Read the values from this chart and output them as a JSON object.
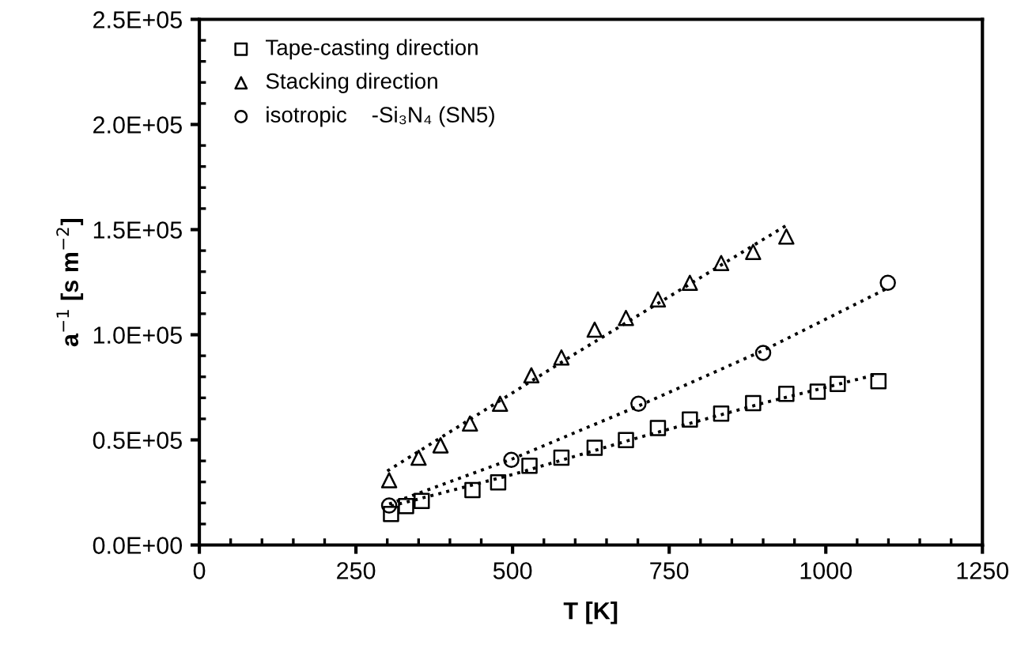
{
  "chart_data": {
    "type": "scatter",
    "xlabel": "T [K]",
    "ylabel": "a$^{−1}$ [s m$^{−2}$]",
    "xlim": [
      0,
      1250
    ],
    "xticks": [
      0,
      250,
      500,
      750,
      1000,
      1250
    ],
    "ylim": [
      0,
      250000
    ],
    "yticks": [
      {
        "value": 0,
        "label": "0.0E+00"
      },
      {
        "value": 50000,
        "label": "0.5E+05"
      },
      {
        "value": 100000,
        "label": "1.0E+05"
      },
      {
        "value": 150000,
        "label": "1.5E+05"
      },
      {
        "value": 200000,
        "label": "2.0E+05"
      },
      {
        "value": 250000,
        "label": "2.5E+05"
      }
    ],
    "grid": false,
    "legend": "top left",
    "series": [
      {
        "name": "Tape-casting direction",
        "marker": "square",
        "color": "#000000",
        "x": [
          306,
          330,
          355,
          436,
          477,
          527,
          578,
          631,
          681,
          732,
          783,
          833,
          884,
          937,
          987,
          1019,
          1084
        ],
        "values": [
          14800,
          18500,
          21000,
          26100,
          29800,
          37700,
          41500,
          46200,
          49900,
          55600,
          59700,
          62500,
          67500,
          71900,
          72900,
          76600,
          77900
        ]
      },
      {
        "name": "Stacking direction",
        "marker": "triangle",
        "color": "#000000",
        "x": [
          303,
          350,
          385,
          432,
          480,
          530,
          578,
          631,
          681,
          732,
          783,
          833,
          884,
          937
        ],
        "values": [
          30800,
          41500,
          47400,
          57800,
          67200,
          80700,
          89200,
          102400,
          108000,
          116800,
          124700,
          134100,
          139400,
          146700
        ]
      },
      {
        "name": "isotropic    -Si₃N₄ (SN5)",
        "marker": "circle",
        "color": "#000000",
        "x": [
          303,
          498,
          701,
          900,
          1099
        ],
        "values": [
          18800,
          40500,
          67200,
          91400,
          124700
        ]
      },
      {
        "type": "line",
        "line_style": "dotted",
        "marker": "none",
        "color": "#000000",
        "x": [
          306,
          500,
          700,
          900,
          1084
        ],
        "values": [
          18500,
          33500,
          51000,
          67500,
          81300
        ]
      },
      {
        "type": "line",
        "line_style": "dotted",
        "marker": "none",
        "color": "#000000",
        "x": [
          300,
          600,
          937
        ],
        "values": [
          35200,
          91000,
          152000
        ]
      },
      {
        "type": "line",
        "line_style": "dotted",
        "marker": "none",
        "color": "#000000",
        "x": [
          303,
          500,
          700,
          900,
          1099
        ],
        "values": [
          19500,
          41000,
          66000,
          92500,
          122200
        ]
      }
    ]
  }
}
